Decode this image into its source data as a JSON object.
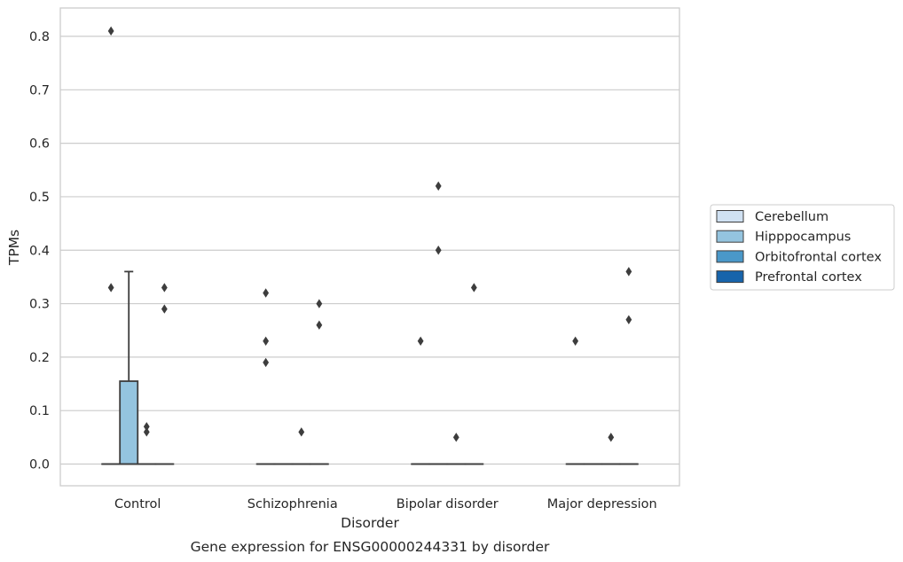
{
  "chart_data": {
    "type": "box",
    "xlabel": "Disorder",
    "ylabel": "TPMs",
    "caption": "Gene expression for ENSG00000244331 by disorder",
    "categories": [
      "Control",
      "Schizophrenia",
      "Bipolar disorder",
      "Major depression"
    ],
    "yticks": [
      "0.0",
      "0.1",
      "0.2",
      "0.3",
      "0.4",
      "0.5",
      "0.6",
      "0.7",
      "0.8"
    ],
    "ylim": [
      -0.04,
      0.85
    ],
    "grid": true,
    "legend_position": "right",
    "series": [
      {
        "name": "Cerebellum",
        "color": "#d0e1f2",
        "boxes": [
          {
            "q1": 0,
            "median": 0,
            "q3": 0,
            "whisker_low": 0,
            "whisker_high": 0,
            "outliers": [
              0.33,
              0.81
            ]
          },
          {
            "q1": 0,
            "median": 0,
            "q3": 0,
            "whisker_low": 0,
            "whisker_high": 0,
            "outliers": [
              0.19,
              0.23,
              0.32
            ]
          },
          {
            "q1": 0,
            "median": 0,
            "q3": 0,
            "whisker_low": 0,
            "whisker_high": 0,
            "outliers": [
              0.23
            ]
          },
          {
            "q1": 0,
            "median": 0,
            "q3": 0,
            "whisker_low": 0,
            "whisker_high": 0,
            "outliers": [
              0.23
            ]
          }
        ]
      },
      {
        "name": "Hipppocampus",
        "color": "#94c4df",
        "boxes": [
          {
            "q1": 0,
            "median": 0,
            "q3": 0.155,
            "whisker_low": 0,
            "whisker_high": 0.36,
            "outliers": []
          },
          {
            "q1": 0,
            "median": 0,
            "q3": 0,
            "whisker_low": 0,
            "whisker_high": 0,
            "outliers": []
          },
          {
            "q1": 0,
            "median": 0,
            "q3": 0,
            "whisker_low": 0,
            "whisker_high": 0,
            "outliers": [
              0.4,
              0.52
            ]
          },
          {
            "q1": 0,
            "median": 0,
            "q3": 0,
            "whisker_low": 0,
            "whisker_high": 0,
            "outliers": []
          }
        ]
      },
      {
        "name": "Orbitofrontal cortex",
        "color": "#4a98c9",
        "boxes": [
          {
            "q1": 0,
            "median": 0,
            "q3": 0,
            "whisker_low": 0,
            "whisker_high": 0,
            "outliers": [
              0.06,
              0.07
            ]
          },
          {
            "q1": 0,
            "median": 0,
            "q3": 0,
            "whisker_low": 0,
            "whisker_high": 0,
            "outliers": [
              0.06
            ]
          },
          {
            "q1": 0,
            "median": 0,
            "q3": 0,
            "whisker_low": 0,
            "whisker_high": 0,
            "outliers": [
              0.05
            ]
          },
          {
            "q1": 0,
            "median": 0,
            "q3": 0,
            "whisker_low": 0,
            "whisker_high": 0,
            "outliers": [
              0.05
            ]
          }
        ]
      },
      {
        "name": "Prefrontal cortex",
        "color": "#1764ab",
        "boxes": [
          {
            "q1": 0,
            "median": 0,
            "q3": 0,
            "whisker_low": 0,
            "whisker_high": 0,
            "outliers": [
              0.29,
              0.33
            ]
          },
          {
            "q1": 0,
            "median": 0,
            "q3": 0,
            "whisker_low": 0,
            "whisker_high": 0,
            "outliers": [
              0.26,
              0.3
            ]
          },
          {
            "q1": 0,
            "median": 0,
            "q3": 0,
            "whisker_low": 0,
            "whisker_high": 0,
            "outliers": [
              0.33
            ]
          },
          {
            "q1": 0,
            "median": 0,
            "q3": 0,
            "whisker_low": 0,
            "whisker_high": 0,
            "outliers": [
              0.27,
              0.36
            ]
          }
        ]
      }
    ]
  }
}
